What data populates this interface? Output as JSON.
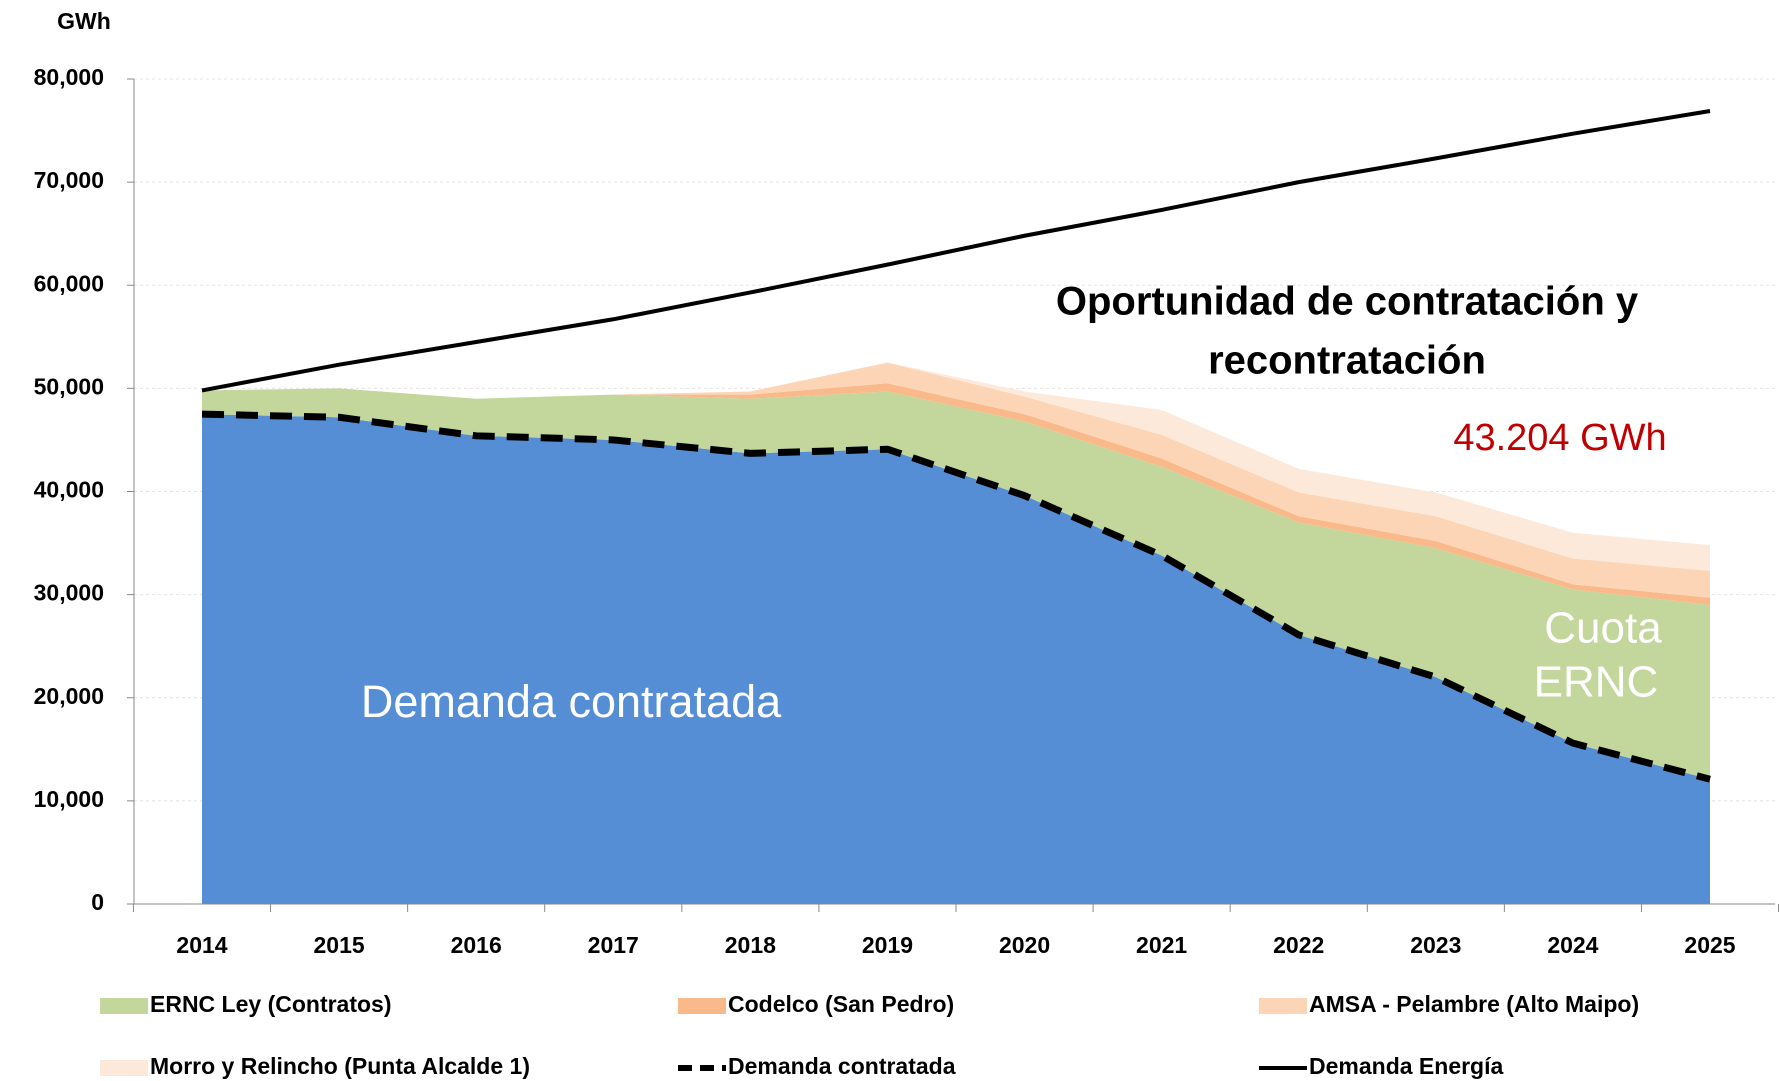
{
  "chart_data": {
    "type": "area",
    "y_label": "GWh",
    "categories": [
      "2014",
      "2015",
      "2016",
      "2017",
      "2018",
      "2019",
      "2020",
      "2021",
      "2022",
      "2023",
      "2024",
      "2025"
    ],
    "ylim": [
      0,
      80000
    ],
    "yticks": [
      0,
      {
        "value": 10000,
        "label": "10,000"
      },
      {
        "value": 20000,
        "label": "20,000"
      },
      {
        "value": 30000,
        "label": "30,000"
      },
      {
        "value": 40000,
        "label": "40,000"
      },
      {
        "value": 50000,
        "label": "50,000"
      },
      {
        "value": 60000,
        "label": "60,000"
      },
      {
        "value": 70000,
        "label": "70,000"
      },
      {
        "value": 80000,
        "label": "80,000"
      }
    ],
    "grid": true,
    "series": [
      {
        "name": "ERNC Ley (Contratos)",
        "type": "area",
        "color": "#c3d69b",
        "values": [
          2300,
          2800,
          3600,
          4400,
          5300,
          5600,
          7200,
          8600,
          10900,
          12500,
          14900,
          16900
        ]
      },
      {
        "name": "Codelco (San Pedro)",
        "type": "area",
        "color": "#f9b98a",
        "values": [
          0,
          0,
          0,
          0,
          400,
          800,
          700,
          800,
          600,
          700,
          500,
          700
        ]
      },
      {
        "name": "AMSA - Pelambre (Alto Maipo)",
        "type": "area",
        "color": "#fbd5b5",
        "values": [
          0,
          0,
          0,
          0,
          300,
          2000,
          1700,
          2300,
          2300,
          2400,
          2500,
          2600
        ]
      },
      {
        "name": "Morro y Relincho (Punta Alcalde 1)",
        "type": "area",
        "color": "#fde9d9",
        "values": [
          0,
          0,
          0,
          0,
          0,
          0,
          500,
          2400,
          2300,
          2300,
          2500,
          2500
        ]
      },
      {
        "name": "Demanda contratada",
        "type": "line",
        "dashed": true,
        "color": "#000000",
        "area_color": "#558ed5",
        "values": [
          47500,
          47200,
          45400,
          45000,
          43700,
          44100,
          39600,
          33800,
          26100,
          22000,
          15600,
          12100
        ]
      },
      {
        "name": "Demanda Energía",
        "type": "line",
        "dashed": false,
        "color": "#000000",
        "values": [
          49800,
          52300,
          54500,
          56700,
          59300,
          62000,
          64800,
          67300,
          70000,
          72300,
          74700,
          76900
        ]
      }
    ],
    "annotations": [
      {
        "text": "Oportunidad de contratación y",
        "color": "#000000"
      },
      {
        "text": "recontratación",
        "color": "#000000"
      },
      {
        "text": "43.204 GWh",
        "color": "#c00000"
      },
      {
        "text": "Demanda contratada",
        "color": "#ffffff"
      },
      {
        "text": "Cuota",
        "color": "#ffffff"
      },
      {
        "text": "ERNC",
        "color": "#ffffff"
      }
    ]
  }
}
